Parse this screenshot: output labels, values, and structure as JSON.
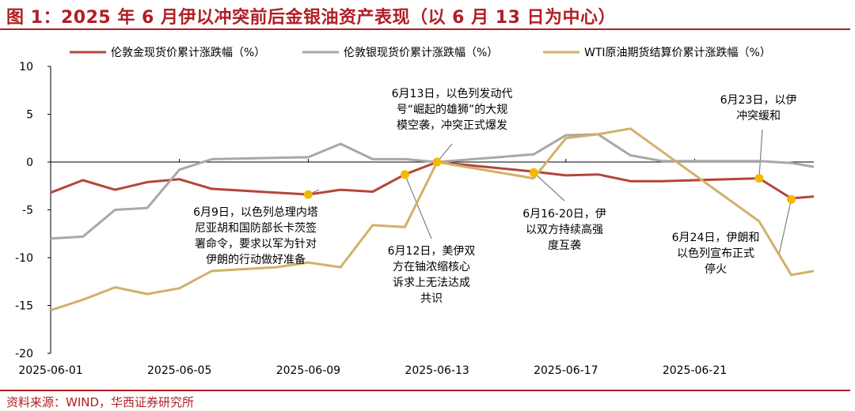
{
  "title": "图 1：2025 年 6 月伊以冲突前后金银油资产表现（以 6 月 13 日为中心）",
  "source": "资料来源：WIND，华西证券研究所",
  "chart_data": {
    "type": "line",
    "title": "图 1：2025 年 6 月伊以冲突前后金银油资产表现（以 6 月 13 日为中心）",
    "xlabel": "",
    "ylabel": "",
    "ylim": [
      -20,
      10
    ],
    "yticks": [
      "10",
      "5",
      "0",
      "-5",
      "-10",
      "-15",
      "-20"
    ],
    "x": [
      "2025-06-01",
      "2025-06-02",
      "2025-06-03",
      "2025-06-04",
      "2025-06-05",
      "2025-06-06",
      "2025-06-07",
      "2025-06-08",
      "2025-06-09",
      "2025-06-10",
      "2025-06-11",
      "2025-06-12",
      "2025-06-13",
      "2025-06-14",
      "2025-06-15",
      "2025-06-16",
      "2025-06-17",
      "2025-06-18",
      "2025-06-19",
      "2025-06-20",
      "2025-06-21",
      "2025-06-22",
      "2025-06-23",
      "2025-06-24"
    ],
    "xtick_labels": [
      "2025-06-01",
      "2025-06-05",
      "2025-06-09",
      "2025-06-13",
      "2025-06-17",
      "2025-06-21"
    ],
    "grid": false,
    "legend_position": "top",
    "series": [
      {
        "name": "伦敦金现货价累计涨跌幅（%）",
        "color": "#b5453b",
        "points": [
          [
            "2025-06-01",
            -3.2
          ],
          [
            "2025-06-02",
            -1.9
          ],
          [
            "2025-06-03",
            -2.9
          ],
          [
            "2025-06-04",
            -2.1
          ],
          [
            "2025-06-05",
            -1.8
          ],
          [
            "2025-06-06",
            -2.8
          ],
          [
            "2025-06-08",
            -3.2
          ],
          [
            "2025-06-09",
            -3.4
          ],
          [
            "2025-06-10",
            -2.9
          ],
          [
            "2025-06-11",
            -3.1
          ],
          [
            "2025-06-12",
            -1.3
          ],
          [
            "2025-06-13",
            0
          ],
          [
            "2025-06-16",
            -1.0
          ],
          [
            "2025-06-17",
            -1.4
          ],
          [
            "2025-06-18",
            -1.3
          ],
          [
            "2025-06-19",
            -2.0
          ],
          [
            "2025-06-20",
            -2.0
          ],
          [
            "2025-06-23",
            -1.7
          ],
          [
            "2025-06-24",
            -3.8
          ],
          [
            "2025-06-24.7",
            -3.6
          ]
        ]
      },
      {
        "name": "伦敦银现货价累计涨跌幅（%）",
        "color": "#a8a8a8",
        "points": [
          [
            "2025-06-01",
            -8.0
          ],
          [
            "2025-06-02",
            -7.8
          ],
          [
            "2025-06-03",
            -5.0
          ],
          [
            "2025-06-04",
            -4.8
          ],
          [
            "2025-06-05",
            -0.8
          ],
          [
            "2025-06-06",
            0.3
          ],
          [
            "2025-06-09",
            0.5
          ],
          [
            "2025-06-10",
            1.9
          ],
          [
            "2025-06-11",
            0.3
          ],
          [
            "2025-06-12",
            0.3
          ],
          [
            "2025-06-13",
            0
          ],
          [
            "2025-06-16",
            0.8
          ],
          [
            "2025-06-17",
            2.8
          ],
          [
            "2025-06-18",
            2.9
          ],
          [
            "2025-06-19",
            0.7
          ],
          [
            "2025-06-20",
            0.1
          ],
          [
            "2025-06-23",
            0.1
          ],
          [
            "2025-06-24",
            -0.1
          ],
          [
            "2025-06-24.7",
            -0.5
          ]
        ]
      },
      {
        "name": "WTI原油期货结算价累计涨跌幅（%）",
        "color": "#d2b06a",
        "points": [
          [
            "2025-06-01",
            -15.5
          ],
          [
            "2025-06-02",
            -14.4
          ],
          [
            "2025-06-03",
            -13.1
          ],
          [
            "2025-06-04",
            -13.8
          ],
          [
            "2025-06-05",
            -13.2
          ],
          [
            "2025-06-06",
            -11.4
          ],
          [
            "2025-06-08",
            -11.0
          ],
          [
            "2025-06-09",
            -10.5
          ],
          [
            "2025-06-10",
            -11.0
          ],
          [
            "2025-06-11",
            -6.6
          ],
          [
            "2025-06-12",
            -6.8
          ],
          [
            "2025-06-13",
            0
          ],
          [
            "2025-06-16",
            -1.7
          ],
          [
            "2025-06-17",
            2.5
          ],
          [
            "2025-06-18",
            2.9
          ],
          [
            "2025-06-19",
            3.5
          ],
          [
            "2025-06-23",
            -6.2
          ],
          [
            "2025-06-24",
            -11.8
          ],
          [
            "2025-06-24.7",
            -11.4
          ]
        ]
      }
    ],
    "markers": [
      {
        "x": "2025-06-09",
        "y": -3.4,
        "color": "#f5b800"
      },
      {
        "x": "2025-06-12",
        "y": -1.3,
        "color": "#f5b800"
      },
      {
        "x": "2025-06-13",
        "y": 0,
        "color": "#f5b800"
      },
      {
        "x": "2025-06-16",
        "y": -1.1,
        "color": "#f5b800"
      },
      {
        "x": "2025-06-23",
        "y": -1.7,
        "color": "#f5b800"
      },
      {
        "x": "2025-06-24",
        "y": -3.9,
        "color": "#f5b800"
      }
    ],
    "annotations": [
      {
        "lines": [
          "6月13日，以色列发动代",
          "号“崛起的雄狮”的大规",
          "模空袭，冲突正式爆发"
        ],
        "target": [
          "2025-06-13",
          0
        ]
      },
      {
        "lines": [
          "6月9日，以色列总理内塔",
          "尼亚胡和国防部长卡茨签",
          "署命令，要求以军为针对",
          "伊朗的行动做好准备"
        ],
        "target": [
          "2025-06-09",
          -3.4
        ]
      },
      {
        "lines": [
          "6月12日，美伊双",
          "方在铀浓缩核心",
          "诉求上无法达成",
          "共识"
        ],
        "target": [
          "2025-06-12",
          -1.3
        ]
      },
      {
        "lines": [
          "6月16-20日，伊",
          "以双方持续高强",
          "度互袭"
        ],
        "target": [
          "2025-06-16",
          -1.1
        ]
      },
      {
        "lines": [
          "6月23日，以伊",
          "冲突缓和"
        ],
        "target": [
          "2025-06-23",
          -1.7
        ]
      },
      {
        "lines": [
          "6月24日，伊朗和",
          "以色列宣布正式",
          "停火"
        ],
        "target": [
          "2025-06-24",
          -3.9
        ]
      }
    ]
  }
}
